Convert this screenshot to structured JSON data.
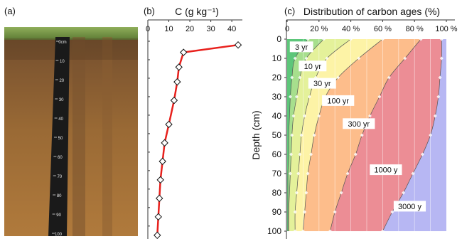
{
  "panels": {
    "a": {
      "label": "(a)"
    },
    "b": {
      "label": "(b)"
    },
    "c": {
      "label": "(c)"
    }
  },
  "photo": {
    "description_icon": "soil-profile-photo",
    "ruler_ticks": [
      "0cm",
      "10",
      "20",
      "30",
      "40",
      "50",
      "60",
      "70",
      "80",
      "90",
      "100"
    ]
  },
  "chart_data": [
    {
      "id": "b",
      "type": "line",
      "title": "C (g kg⁻¹)",
      "xlim": [
        0,
        43
      ],
      "ylim": [
        0,
        102
      ],
      "x_ticks": [
        0,
        10,
        20,
        30,
        40
      ],
      "y_ticks": [
        0,
        10,
        20,
        30,
        40,
        50,
        60,
        70,
        80,
        90,
        100
      ],
      "series": [
        {
          "color": "#e8201c",
          "marker": "diamond",
          "points": [
            {
              "x": 43.0,
              "depth": 2
            },
            {
              "x": 17.0,
              "depth": 6
            },
            {
              "x": 14.8,
              "depth": 14
            },
            {
              "x": 14.0,
              "depth": 22
            },
            {
              "x": 12.5,
              "depth": 32
            },
            {
              "x": 10.0,
              "depth": 45
            },
            {
              "x": 8.0,
              "depth": 55
            },
            {
              "x": 7.0,
              "depth": 65
            },
            {
              "x": 6.0,
              "depth": 75
            },
            {
              "x": 5.5,
              "depth": 85
            },
            {
              "x": 5.0,
              "depth": 95
            },
            {
              "x": 4.5,
              "depth": 105
            }
          ]
        }
      ]
    },
    {
      "id": "c",
      "type": "area",
      "title": "Distribution of carbon ages (%)",
      "ylabel": "Depth (cm)",
      "xlim": [
        0,
        100
      ],
      "ylim": [
        0,
        100
      ],
      "x_ticks": [
        "0",
        "20 %",
        "40 %",
        "60 %",
        "80 %",
        "100 %"
      ],
      "x_tick_values": [
        0,
        20,
        40,
        60,
        80,
        100
      ],
      "y_ticks": [
        0,
        10,
        20,
        30,
        40,
        50,
        60,
        70,
        80,
        90,
        100
      ],
      "depths": [
        0,
        10,
        20,
        30,
        40,
        50,
        60,
        70,
        80,
        90,
        100
      ],
      "boundaries": [
        {
          "upper_of": "3 yr",
          "values": [
            13,
            5,
            3,
            2,
            1.5,
            1,
            1,
            0.5,
            0.5,
            0.5,
            0.5
          ]
        },
        {
          "upper_of": "10 yr",
          "values": [
            23,
            12,
            8,
            6,
            4,
            3,
            2.5,
            2,
            1.5,
            1,
            1
          ]
        },
        {
          "upper_of": "30 yr",
          "values": [
            40,
            25,
            18,
            14,
            11,
            9,
            8,
            7,
            6,
            5,
            5
          ]
        },
        {
          "upper_of": "100 yr",
          "values": [
            60,
            45,
            32,
            24,
            20,
            17,
            15,
            13,
            12,
            11,
            10
          ]
        },
        {
          "upper_of": "300 yr",
          "values": [
            84,
            74,
            64,
            58,
            52,
            47,
            43,
            38,
            34,
            30,
            27
          ]
        },
        {
          "upper_of": "1000 y",
          "values": [
            97,
            97,
            96,
            95,
            93,
            90,
            85,
            79,
            73,
            66,
            60
          ]
        },
        {
          "upper_of": "3000 y",
          "values": [
            100,
            100,
            100,
            100,
            100,
            100,
            100,
            100,
            100,
            100,
            100
          ]
        }
      ],
      "bands": [
        {
          "name": "3 yr",
          "color": "#5dc67a",
          "label_x": 9,
          "label_depth": 4
        },
        {
          "name": "10 yr",
          "color": "#a7df8d",
          "label_x": 16,
          "label_depth": 14
        },
        {
          "name": "30 yr",
          "color": "#e4f19a",
          "label_x": 22,
          "label_depth": 23
        },
        {
          "name": "100 yr",
          "color": "#fdf3a6",
          "label_x": 32,
          "label_depth": 32
        },
        {
          "name": "300 yr",
          "color": "#fdbd8b",
          "label_x": 45,
          "label_depth": 44
        },
        {
          "name": "1000 y",
          "color": "#ec8d95",
          "label_x": 62,
          "label_depth": 68
        },
        {
          "name": "3000 y",
          "color": "#b7b7f3",
          "label_x": 77,
          "label_depth": 87
        }
      ]
    }
  ]
}
